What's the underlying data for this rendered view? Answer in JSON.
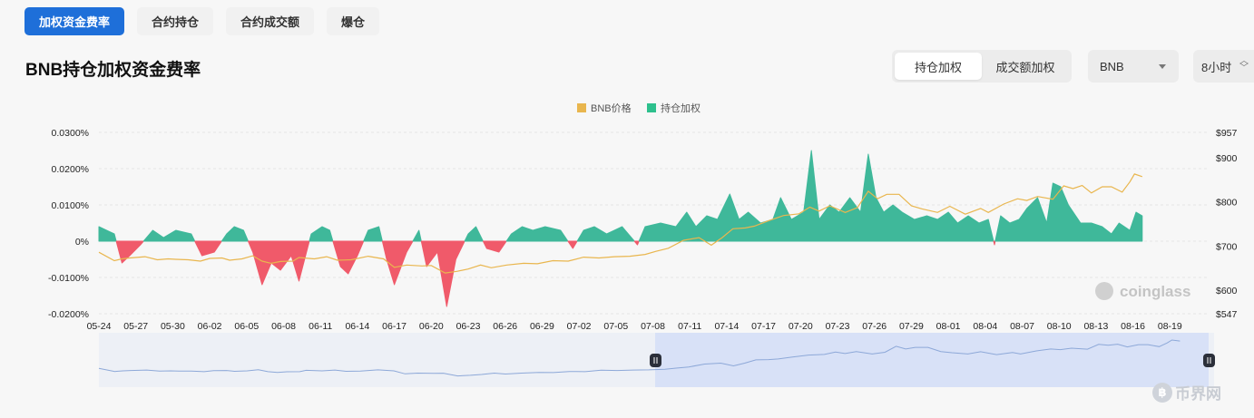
{
  "tabs": [
    {
      "label": "加权资金费率",
      "active": true
    },
    {
      "label": "合约持仓",
      "active": false
    },
    {
      "label": "合约成交额",
      "active": false
    },
    {
      "label": "爆仓",
      "active": false
    }
  ],
  "page_title": "BNB持仓加权资金费率",
  "toggle": {
    "options": [
      "持仓加权",
      "成交额加权"
    ],
    "active_index": 0
  },
  "symbol_select": {
    "value": "BNB"
  },
  "interval_select": {
    "value": "8小时"
  },
  "watermark": "coinglass",
  "corner_brand": "币界网",
  "colors": {
    "positive": "#3fb89a",
    "negative": "#f05a6a",
    "price": "#e9b64e",
    "navigator_line": "#8da8d8",
    "navigator_selection": "#d8e1f7"
  },
  "chart_data": {
    "type": "area",
    "legend": [
      {
        "name": "BNB价格",
        "color": "#e9b64e"
      },
      {
        "name": "持仓加权",
        "color": "#2dc08d"
      }
    ],
    "x_labels": [
      "05-24",
      "05-27",
      "05-30",
      "06-02",
      "06-05",
      "06-08",
      "06-11",
      "06-14",
      "06-17",
      "06-20",
      "06-23",
      "06-26",
      "06-29",
      "07-02",
      "07-05",
      "07-08",
      "07-11",
      "07-14",
      "07-17",
      "07-20",
      "07-23",
      "07-26",
      "07-29",
      "08-01",
      "08-04",
      "08-07",
      "08-10",
      "08-13",
      "08-16",
      "08-19"
    ],
    "y_left_ticks": [
      "0.0300%",
      "0.0200%",
      "0.0100%",
      "0%",
      "-0.0100%",
      "-0.0200%"
    ],
    "y_left_range": [
      -0.02,
      0.03
    ],
    "y_right_ticks": [
      "$957",
      "$900",
      "$800",
      "$700",
      "$600",
      "$547"
    ],
    "y_right_range": [
      547,
      957
    ],
    "legend_position": "top-center",
    "funding_rate_pct": [
      [
        0,
        0.004
      ],
      [
        1.0,
        0.002
      ],
      [
        1.5,
        -0.006
      ],
      [
        2.0,
        -0.004
      ],
      [
        2.7,
        -0.001
      ],
      [
        3.5,
        0.003
      ],
      [
        4.2,
        0.001
      ],
      [
        5.0,
        0.003
      ],
      [
        6.0,
        0.002
      ],
      [
        6.7,
        -0.004
      ],
      [
        7.5,
        -0.003
      ],
      [
        8.3,
        0.002
      ],
      [
        8.8,
        0.004
      ],
      [
        9.4,
        0.003
      ],
      [
        10.0,
        -0.003
      ],
      [
        10.6,
        -0.012
      ],
      [
        11.2,
        -0.006
      ],
      [
        11.8,
        -0.008
      ],
      [
        12.5,
        -0.004
      ],
      [
        13.0,
        -0.011
      ],
      [
        13.8,
        0.002
      ],
      [
        14.5,
        0.004
      ],
      [
        15.0,
        0.003
      ],
      [
        15.7,
        -0.007
      ],
      [
        16.2,
        -0.009
      ],
      [
        16.8,
        -0.004
      ],
      [
        17.5,
        0.003
      ],
      [
        18.2,
        0.004
      ],
      [
        18.7,
        -0.005
      ],
      [
        19.2,
        -0.012
      ],
      [
        20.0,
        -0.003
      ],
      [
        20.8,
        0.003
      ],
      [
        21.3,
        -0.007
      ],
      [
        22.0,
        -0.003
      ],
      [
        22.6,
        -0.018
      ],
      [
        23.2,
        -0.005
      ],
      [
        24.0,
        0.002
      ],
      [
        24.5,
        0.004
      ],
      [
        25.2,
        -0.002
      ],
      [
        26.0,
        -0.003
      ],
      [
        26.8,
        0.002
      ],
      [
        27.5,
        0.004
      ],
      [
        28.2,
        0.003
      ],
      [
        29.0,
        0.004
      ],
      [
        30.0,
        0.003
      ],
      [
        30.8,
        -0.002
      ],
      [
        31.5,
        0.003
      ],
      [
        32.2,
        0.004
      ],
      [
        33.0,
        0.002
      ],
      [
        34.0,
        0.004
      ],
      [
        35.0,
        -0.001
      ],
      [
        35.5,
        0.004
      ],
      [
        36.5,
        0.005
      ],
      [
        37.5,
        0.004
      ],
      [
        38.2,
        0.008
      ],
      [
        38.8,
        0.004
      ],
      [
        39.5,
        0.007
      ],
      [
        40.2,
        0.006
      ],
      [
        41.0,
        0.013
      ],
      [
        41.6,
        0.006
      ],
      [
        42.2,
        0.008
      ],
      [
        43.0,
        0.005
      ],
      [
        43.8,
        0.006
      ],
      [
        44.3,
        0.012
      ],
      [
        45.0,
        0.006
      ],
      [
        45.8,
        0.008
      ],
      [
        46.3,
        0.025
      ],
      [
        46.8,
        0.006
      ],
      [
        47.5,
        0.01
      ],
      [
        48.1,
        0.008
      ],
      [
        48.8,
        0.012
      ],
      [
        49.5,
        0.008
      ],
      [
        50.0,
        0.024
      ],
      [
        50.5,
        0.012
      ],
      [
        51.0,
        0.008
      ],
      [
        51.6,
        0.01
      ],
      [
        52.2,
        0.008
      ],
      [
        53.0,
        0.006
      ],
      [
        53.8,
        0.007
      ],
      [
        54.5,
        0.006
      ],
      [
        55.2,
        0.008
      ],
      [
        55.8,
        0.005
      ],
      [
        56.5,
        0.007
      ],
      [
        57.2,
        0.005
      ],
      [
        57.8,
        0.006
      ],
      [
        58.2,
        -0.001
      ],
      [
        58.6,
        0.007
      ],
      [
        59.2,
        0.005
      ],
      [
        59.8,
        0.006
      ],
      [
        60.3,
        0.009
      ],
      [
        61.0,
        0.012
      ],
      [
        61.6,
        0.005
      ],
      [
        62.0,
        0.016
      ],
      [
        62.5,
        0.015
      ],
      [
        63.0,
        0.01
      ],
      [
        63.8,
        0.005
      ],
      [
        64.5,
        0.005
      ],
      [
        65.2,
        0.004
      ],
      [
        65.8,
        0.002
      ],
      [
        66.3,
        0.005
      ],
      [
        67.0,
        0.003
      ],
      [
        67.4,
        0.008
      ],
      [
        67.8,
        0.007
      ]
    ],
    "bnb_price_usd": [
      [
        0,
        686
      ],
      [
        1.0,
        667
      ],
      [
        1.5,
        671
      ],
      [
        2.0,
        673
      ],
      [
        3.0,
        676
      ],
      [
        3.8,
        669
      ],
      [
        4.5,
        671
      ],
      [
        5.0,
        670
      ],
      [
        5.8,
        669
      ],
      [
        6.6,
        666
      ],
      [
        7.2,
        672
      ],
      [
        8.0,
        673
      ],
      [
        8.5,
        668
      ],
      [
        9.3,
        671
      ],
      [
        10.0,
        678
      ],
      [
        10.6,
        666
      ],
      [
        11.2,
        661
      ],
      [
        11.8,
        665
      ],
      [
        12.6,
        666
      ],
      [
        13.0,
        674
      ],
      [
        14.0,
        671
      ],
      [
        14.8,
        676
      ],
      [
        15.5,
        668
      ],
      [
        16.4,
        669
      ],
      [
        17.5,
        677
      ],
      [
        18.5,
        671
      ],
      [
        19.2,
        652
      ],
      [
        20.0,
        657
      ],
      [
        21.0,
        655
      ],
      [
        21.6,
        656
      ],
      [
        22.5,
        639
      ],
      [
        23.3,
        643
      ],
      [
        24.0,
        648
      ],
      [
        24.8,
        657
      ],
      [
        25.5,
        651
      ],
      [
        26.5,
        657
      ],
      [
        27.6,
        661
      ],
      [
        28.5,
        660
      ],
      [
        29.5,
        667
      ],
      [
        30.5,
        666
      ],
      [
        31.5,
        675
      ],
      [
        32.5,
        673
      ],
      [
        33.5,
        676
      ],
      [
        34.5,
        677
      ],
      [
        35.5,
        681
      ],
      [
        36.2,
        688
      ],
      [
        37.0,
        695
      ],
      [
        38.0,
        713
      ],
      [
        39.0,
        719
      ],
      [
        39.8,
        702
      ],
      [
        40.5,
        719
      ],
      [
        41.2,
        739
      ],
      [
        42.0,
        741
      ],
      [
        42.6,
        745
      ],
      [
        43.5,
        757
      ],
      [
        44.5,
        769
      ],
      [
        45.5,
        773
      ],
      [
        46.2,
        788
      ],
      [
        46.8,
        779
      ],
      [
        47.5,
        791
      ],
      [
        48.5,
        776
      ],
      [
        49.3,
        787
      ],
      [
        50.0,
        824
      ],
      [
        50.6,
        807
      ],
      [
        51.2,
        817
      ],
      [
        52.0,
        817
      ],
      [
        52.8,
        791
      ],
      [
        53.5,
        784
      ],
      [
        54.5,
        776
      ],
      [
        55.3,
        790
      ],
      [
        56.3,
        772
      ],
      [
        57.3,
        785
      ],
      [
        57.8,
        776
      ],
      [
        58.8,
        795
      ],
      [
        59.7,
        807
      ],
      [
        60.3,
        803
      ],
      [
        61.0,
        812
      ],
      [
        62.0,
        806
      ],
      [
        62.7,
        836
      ],
      [
        63.3,
        830
      ],
      [
        63.9,
        837
      ],
      [
        64.5,
        820
      ],
      [
        65.2,
        834
      ],
      [
        65.8,
        834
      ],
      [
        66.5,
        822
      ],
      [
        67.0,
        845
      ],
      [
        67.3,
        863
      ],
      [
        67.8,
        857
      ]
    ]
  }
}
